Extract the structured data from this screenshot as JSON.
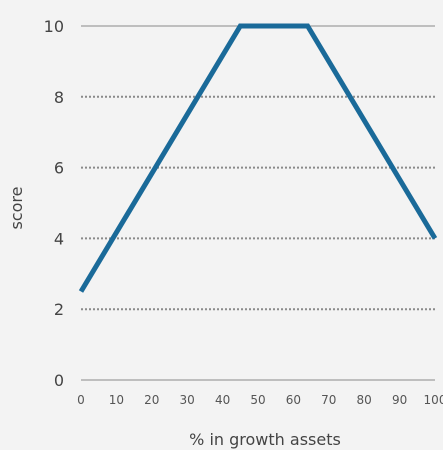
{
  "chart_data": {
    "type": "line",
    "title": "",
    "xlabel": "% in growth assets",
    "ylabel": "score",
    "xlim": [
      0,
      100
    ],
    "ylim": [
      0,
      10
    ],
    "x_ticks": [
      0,
      10,
      20,
      30,
      40,
      50,
      60,
      70,
      80,
      90,
      100
    ],
    "y_ticks": [
      0,
      2,
      4,
      6,
      8,
      10
    ],
    "grid": "horizontal dotted at 2, 4, 6, 8; solid at 10",
    "legend": "none",
    "series": [
      {
        "x": [
          0,
          45,
          64,
          100
        ],
        "y": [
          2.5,
          10,
          10,
          4
        ],
        "color": "#1a6a99"
      }
    ],
    "colors": {
      "background": "#f3f3f3",
      "line": "#1a6a99",
      "grid": "#8a8a8a",
      "text": "#444444"
    }
  }
}
